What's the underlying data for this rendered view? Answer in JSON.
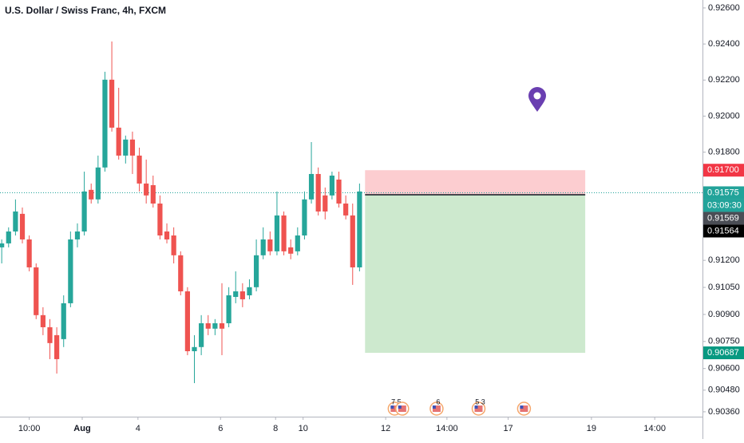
{
  "chart_data": {
    "type": "candlestick",
    "title": "U.S. Dollar / Swiss Franc, 4h, FXCM",
    "x": [
      0,
      1,
      2,
      3,
      4,
      5,
      6,
      7,
      8,
      9,
      10,
      11,
      12,
      13,
      14,
      15,
      16,
      17,
      18,
      19,
      20,
      21,
      22,
      23,
      24,
      25,
      26,
      27,
      28,
      29,
      30,
      31,
      32,
      33,
      34,
      35,
      36,
      37,
      38,
      39,
      40,
      41,
      42,
      43,
      44,
      45,
      46,
      47,
      48,
      49,
      50,
      51,
      52
    ],
    "open": [
      0.91272,
      0.91294,
      0.9136,
      0.91458,
      0.91316,
      0.91161,
      0.90896,
      0.90829,
      0.90785,
      0.90763,
      0.90962,
      0.91316,
      0.9136,
      0.91591,
      0.91538,
      0.91715,
      0.92202,
      0.91936,
      0.91781,
      0.9187,
      0.91781,
      0.91626,
      0.91617,
      0.91515,
      0.9136,
      0.91338,
      0.91228,
      0.91028,
      0.90696,
      0.90719,
      0.90851,
      0.90821,
      0.90851,
      0.90851,
      0.90997,
      0.91028,
      0.91006,
      0.91051,
      0.91228,
      0.91316,
      0.9125,
      0.91449,
      0.91272,
      0.9125,
      0.91338,
      0.91538,
      0.91679,
      0.9156,
      0.9156,
      0.91648,
      0.91515,
      0.91449,
      0.91161
    ],
    "high": [
      0.91316,
      0.91383,
      0.91538,
      0.91493,
      0.91338,
      0.91183,
      0.9094,
      0.90874,
      0.90829,
      0.91006,
      0.9136,
      0.91405,
      0.91692,
      0.91626,
      0.91781,
      0.92246,
      0.92414,
      0.92157,
      0.91892,
      0.91914,
      0.91825,
      0.91759,
      0.9167,
      0.9156,
      0.91405,
      0.91383,
      0.9125,
      0.91051,
      0.90785,
      0.90896,
      0.90896,
      0.90874,
      0.91073,
      0.91051,
      0.91139,
      0.91073,
      0.91095,
      0.91316,
      0.91383,
      0.9136,
      0.91582,
      0.91471,
      0.91316,
      0.91383,
      0.91582,
      0.91856,
      0.91715,
      0.91604,
      0.91692,
      0.91692,
      0.9156,
      0.91515,
      0.91626
    ],
    "low": [
      0.91183,
      0.91272,
      0.91338,
      0.91294,
      0.91139,
      0.90874,
      0.90785,
      0.90652,
      0.90572,
      0.90719,
      0.9094,
      0.91272,
      0.91338,
      0.91515,
      0.91515,
      0.91692,
      0.91914,
      0.91759,
      0.91737,
      0.91679,
      0.91582,
      0.91515,
      0.91493,
      0.91316,
      0.91294,
      0.91183,
      0.91006,
      0.90674,
      0.90519,
      0.90674,
      0.90785,
      0.90785,
      0.90674,
      0.90829,
      0.90962,
      0.9094,
      0.90984,
      0.91028,
      0.91206,
      0.91228,
      0.91228,
      0.91228,
      0.91206,
      0.91228,
      0.91316,
      0.91515,
      0.91449,
      0.91427,
      0.91538,
      0.91493,
      0.91427,
      0.91064,
      0.91139
    ],
    "close": [
      0.91294,
      0.9136,
      0.91471,
      0.91316,
      0.91161,
      0.90896,
      0.90829,
      0.90741,
      0.90652,
      0.90962,
      0.91316,
      0.9136,
      0.91582,
      0.91538,
      0.91715,
      0.92202,
      0.91936,
      0.91781,
      0.9187,
      0.91781,
      0.91626,
      0.9156,
      0.91515,
      0.91338,
      0.91316,
      0.91228,
      0.91028,
      0.90696,
      0.90719,
      0.90851,
      0.90821,
      0.90851,
      0.90821,
      0.91006,
      0.91028,
      0.90984,
      0.91051,
      0.91228,
      0.91316,
      0.9125,
      0.91449,
      0.9125,
      0.91237,
      0.91338,
      0.91538,
      0.91679,
      0.91471,
      0.91471,
      0.9167,
      0.91515,
      0.91449,
      0.91161,
      0.91582
    ],
    "up_color": "#26a69a",
    "down_color": "#ef5350",
    "xlim": [
      -0.25,
      101.84
    ],
    "xticks": [
      {
        "value": 4,
        "label": "10:00"
      },
      {
        "value": 11.7,
        "label": "Aug"
      },
      {
        "value": 19.8,
        "label": "4"
      },
      {
        "value": 31.8,
        "label": "6"
      },
      {
        "value": 39.8,
        "label": "8"
      },
      {
        "value": 43.8,
        "label": "10"
      },
      {
        "value": 55.8,
        "label": "12"
      },
      {
        "value": 64.7,
        "label": "14:00"
      },
      {
        "value": 73.6,
        "label": "17"
      },
      {
        "value": 85.7,
        "label": "19"
      },
      {
        "value": 94.9,
        "label": "14:00"
      }
    ],
    "ylim": [
      0.90333,
      0.92644
    ],
    "yticks": [
      {
        "value": 0.926,
        "label": "0.92600"
      },
      {
        "value": 0.924,
        "label": "0.92400"
      },
      {
        "value": 0.922,
        "label": "0.92200"
      },
      {
        "value": 0.92,
        "label": "0.92000"
      },
      {
        "value": 0.918,
        "label": "0.91800"
      },
      {
        "value": 0.912,
        "label": "0.91200"
      },
      {
        "value": 0.9105,
        "label": "0.91050"
      },
      {
        "value": 0.909,
        "label": "0.90900"
      },
      {
        "value": 0.9075,
        "label": "0.90750"
      },
      {
        "value": 0.906,
        "label": "0.90600"
      },
      {
        "value": 0.9048,
        "label": "0.90480"
      },
      {
        "value": 0.9036,
        "label": "0.90360"
      }
    ],
    "grid": false,
    "current_price": 0.91575,
    "position": {
      "start": 52.8,
      "end": 84.8,
      "entry": 0.91564,
      "stop": 0.917,
      "target": 0.90687
    },
    "price_labels": [
      {
        "value": 0.917,
        "label": "0.91700",
        "color": "#f23645"
      },
      {
        "value": 0.91575,
        "label": "0.91575",
        "color": "#22a39a"
      },
      {
        "label": "03:09:30",
        "color": "#22a39a"
      },
      {
        "value": 0.91569,
        "label": "0.91569",
        "color": "#4a4d55"
      },
      {
        "value": 0.91564,
        "label": "0.91564",
        "color": "#000000"
      },
      {
        "value": 0.90687,
        "label": "0.90687",
        "color": "#089981"
      }
    ],
    "events": [
      {
        "x": 57.1,
        "label": "7 5"
      },
      {
        "x": 58.2,
        "label": null
      },
      {
        "x": 63.2,
        "label": "6"
      },
      {
        "x": 69.3,
        "label": "5 3"
      },
      {
        "x": 75.9,
        "label": null
      }
    ]
  }
}
